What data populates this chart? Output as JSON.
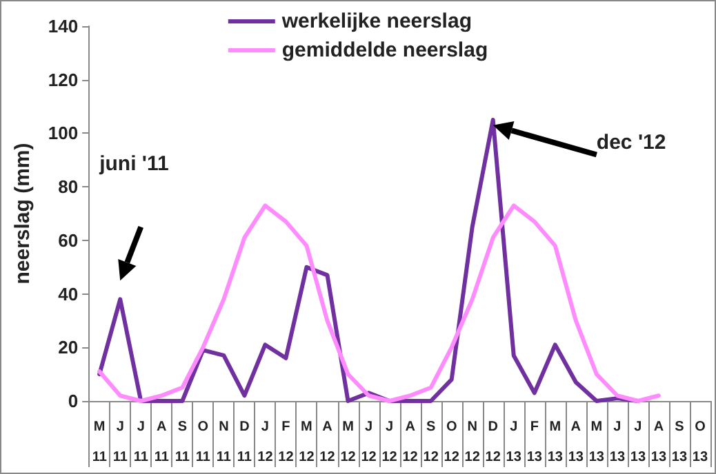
{
  "chart_data": {
    "type": "line",
    "ylabel": "neerslag (mm)",
    "categories": [
      "M\n11",
      "J\n11",
      "J\n11",
      "A\n11",
      "S\n11",
      "O\n11",
      "N\n11",
      "D\n11",
      "J\n12",
      "F\n12",
      "M\n12",
      "A\n12",
      "M\n12",
      "J\n12",
      "J\n12",
      "A\n12",
      "S\n12",
      "O\n12",
      "N\n12",
      "D\n12",
      "J\n13",
      "F\n13",
      "M\n13",
      "A\n13",
      "M\n13",
      "J\n13",
      "J\n13",
      "A\n13",
      "S\n13",
      "O\n13"
    ],
    "series": [
      {
        "name": "werkelijke neerslag",
        "color": "#7030a0",
        "values": [
          10,
          38,
          0,
          0,
          0,
          19,
          17,
          2,
          21,
          16,
          50,
          47,
          0,
          3,
          0,
          0,
          0,
          8,
          65,
          105,
          17,
          3,
          21,
          7,
          0,
          1,
          0,
          null,
          null,
          null
        ]
      },
      {
        "name": "gemiddelde neerslag",
        "color": "#ff8cff",
        "values": [
          11,
          2,
          0,
          2,
          5,
          20,
          38,
          61,
          73,
          67,
          58,
          30,
          10,
          2,
          0,
          2,
          5,
          20,
          38,
          61,
          73,
          67,
          58,
          30,
          10,
          2,
          0,
          2,
          null,
          null
        ]
      }
    ],
    "ylim": [
      0,
      140
    ],
    "yticks": [
      0,
      20,
      40,
      60,
      80,
      100,
      120,
      140
    ],
    "grid": false,
    "legend": "top",
    "marker": "none",
    "line_style": "solid",
    "annotations": [
      "juni '11",
      "dec '12"
    ]
  }
}
